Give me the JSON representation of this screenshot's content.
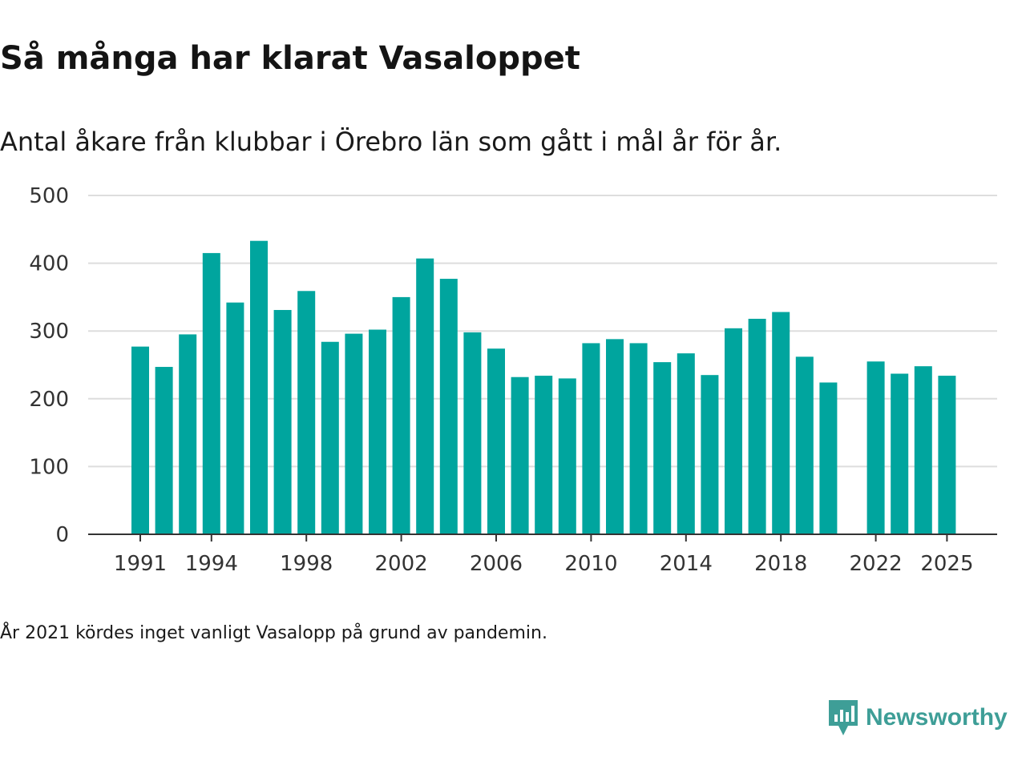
{
  "header": {
    "title": "Så många har klarat Vasaloppet",
    "subtitle": "Antal åkare från klubbar i Örebro län som gått i mål år för år."
  },
  "footer": {
    "note": "År 2021 kördes inget vanligt Vasalopp på grund av pandemin.",
    "brand_name": "Newsworthy",
    "brand_icon": "newsworthy-logo-icon"
  },
  "colors": {
    "bar": "#00a59e",
    "grid": "#dddddd",
    "axis": "#333333",
    "brand": "#3e9e97"
  },
  "chart_data": {
    "type": "bar",
    "title": "Så många har klarat Vasaloppet",
    "subtitle": "Antal åkare från klubbar i Örebro län som gått i mål år för år.",
    "xlabel": "",
    "ylabel": "",
    "ylim": [
      0,
      500
    ],
    "yticks": [
      0,
      100,
      200,
      300,
      400,
      500
    ],
    "xticks": [
      1991,
      1994,
      1998,
      2002,
      2006,
      2010,
      2014,
      2018,
      2022,
      2025
    ],
    "grid": true,
    "categories": [
      1991,
      1992,
      1993,
      1994,
      1995,
      1996,
      1997,
      1998,
      1999,
      2000,
      2001,
      2002,
      2003,
      2004,
      2005,
      2006,
      2007,
      2008,
      2009,
      2010,
      2011,
      2012,
      2013,
      2014,
      2015,
      2016,
      2017,
      2018,
      2019,
      2020,
      2021,
      2022,
      2023,
      2024,
      2025
    ],
    "values": [
      277,
      247,
      295,
      415,
      342,
      433,
      331,
      359,
      284,
      296,
      302,
      350,
      407,
      377,
      298,
      274,
      232,
      234,
      230,
      282,
      288,
      282,
      254,
      267,
      235,
      304,
      318,
      328,
      262,
      224,
      null,
      255,
      237,
      248,
      234
    ]
  }
}
